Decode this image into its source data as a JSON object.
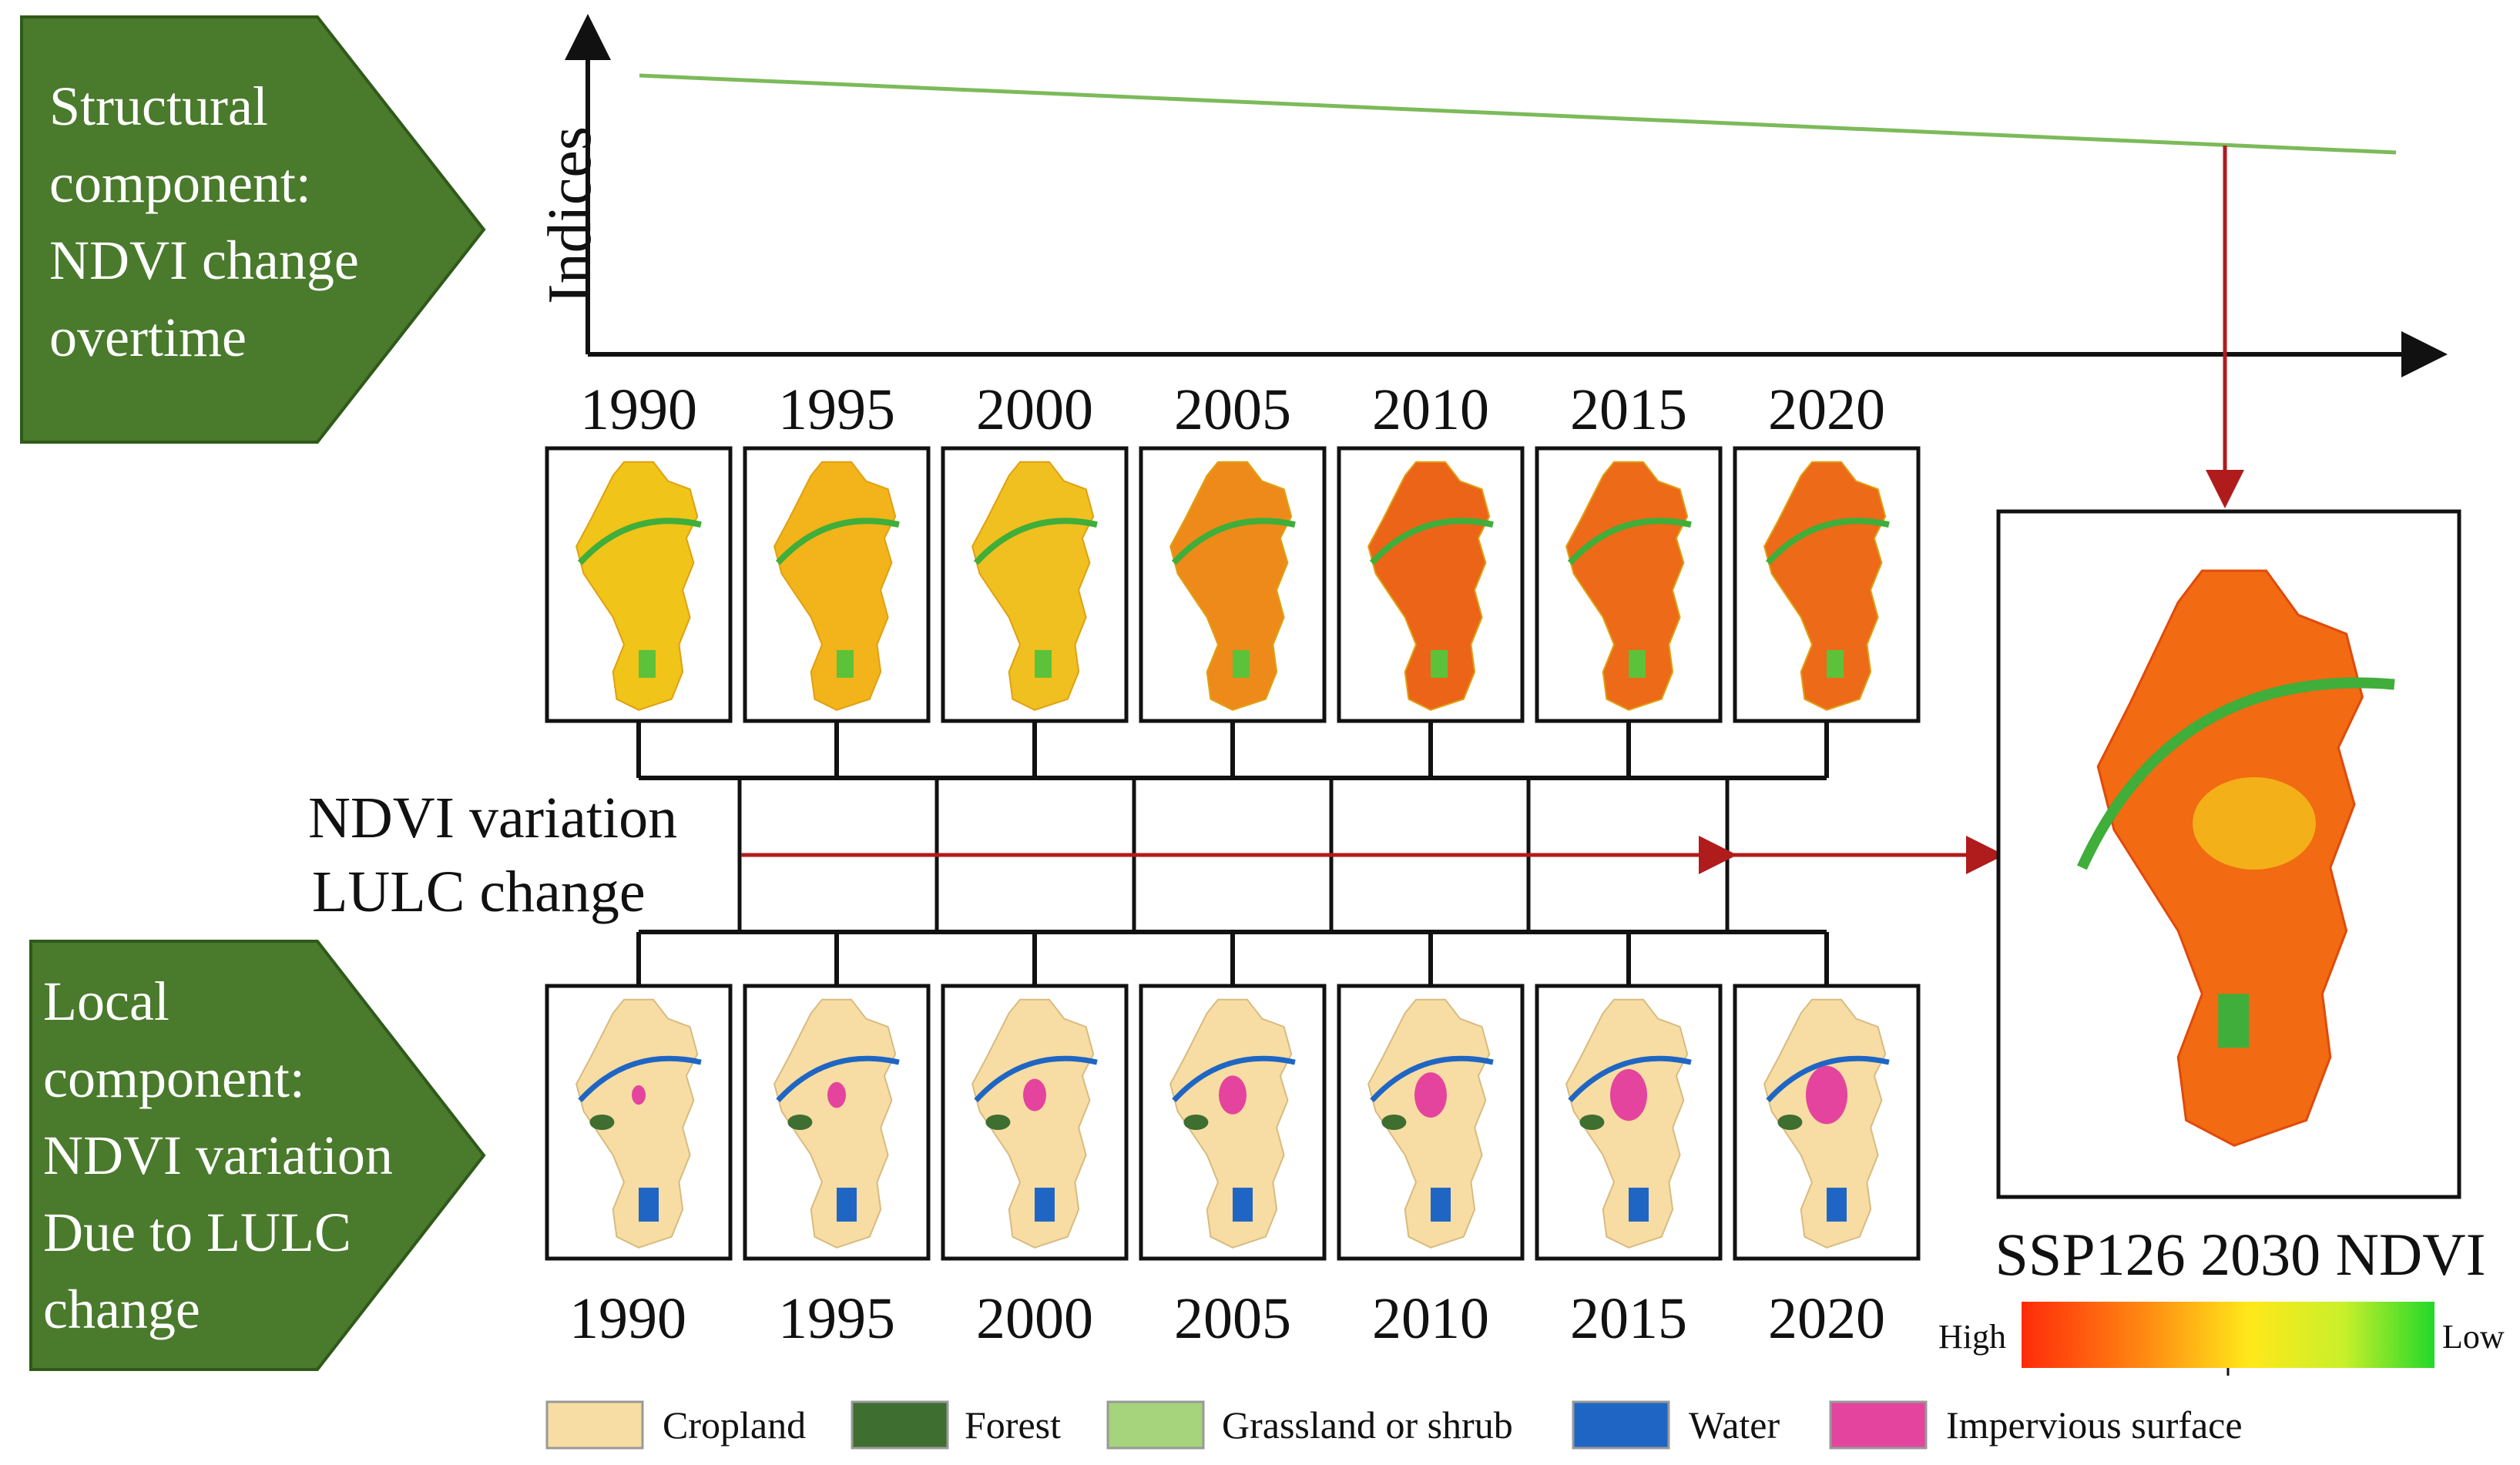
{
  "structural": {
    "lines": [
      "Structural",
      "component:",
      "NDVI change",
      "overtime"
    ],
    "color": "#4a7a2c"
  },
  "local": {
    "lines": [
      "Local",
      "component:",
      "NDVI variation",
      "Due to LULC",
      "change"
    ],
    "color": "#4a7a2c"
  },
  "chart": {
    "ylabel": "Indices",
    "trend_color": "#7cba5a",
    "arrow_color": "#b01c1c"
  },
  "years_top": [
    "1990",
    "1995",
    "2000",
    "2005",
    "2010",
    "2015",
    "2020"
  ],
  "years_bottom": [
    "1990",
    "1995",
    "2000",
    "2005",
    "2010",
    "2015",
    "2020"
  ],
  "middle_label": {
    "line1": "NDVI variation",
    "line2": "LULC change"
  },
  "ndvi_maps": [
    {
      "year": "1990",
      "tint": "#f0c419"
    },
    {
      "year": "1995",
      "tint": "#f2b41a"
    },
    {
      "year": "2000",
      "tint": "#f0c020"
    },
    {
      "year": "2005",
      "tint": "#ee8a1a"
    },
    {
      "year": "2010",
      "tint": "#ec6418"
    },
    {
      "year": "2015",
      "tint": "#ec6a18"
    },
    {
      "year": "2020",
      "tint": "#ec6a18"
    }
  ],
  "lulc_maps": [
    {
      "year": "1990",
      "impervious": 1
    },
    {
      "year": "1995",
      "impervious": 2
    },
    {
      "year": "2000",
      "impervious": 3
    },
    {
      "year": "2005",
      "impervious": 4
    },
    {
      "year": "2010",
      "impervious": 5
    },
    {
      "year": "2015",
      "impervious": 6
    },
    {
      "year": "2020",
      "impervious": 7
    }
  ],
  "result": {
    "title": "SSP126 2030 NDVI",
    "scale_high": "High",
    "scale_low": "Low",
    "gradient_colors": [
      "#ff2b0a",
      "#ff8a12",
      "#ffe81a",
      "#c8f02a",
      "#22d82a"
    ]
  },
  "legend": [
    {
      "label": "Cropland",
      "color": "#f7dda3"
    },
    {
      "label": "Forest",
      "color": "#3e6e30"
    },
    {
      "label": "Grassland or shrub",
      "color": "#a6d47c"
    },
    {
      "label": "Water",
      "color": "#1f66c4"
    },
    {
      "label": "Impervious surface",
      "color": "#e4449e"
    }
  ]
}
